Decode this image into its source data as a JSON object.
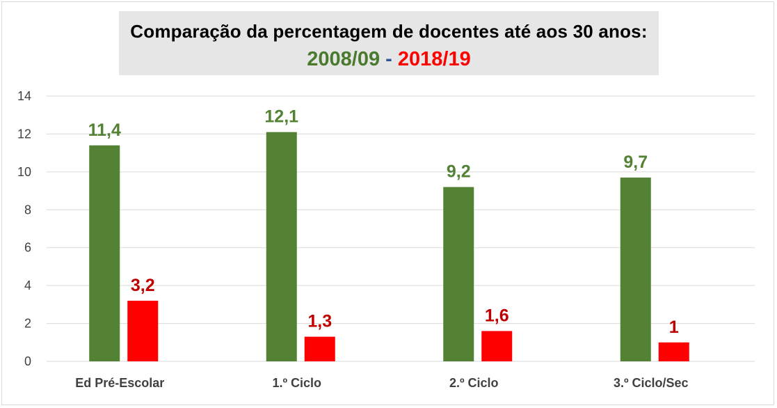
{
  "title_line1": "Comparação da percentagem de docentes até aos 30 anos:",
  "title_line2": {
    "series1": "2008/09",
    "separator": "-",
    "series2": "2018/19"
  },
  "chart_data": {
    "type": "bar",
    "title": "Comparação da percentagem de docentes até aos 30 anos: 2008/09 - 2018/19",
    "categories": [
      "Ed Pré-Escolar",
      "1.º Ciclo",
      "2.º Ciclo",
      "3.º Ciclo/Sec"
    ],
    "series": [
      {
        "name": "2008/09",
        "values": [
          11.4,
          12.1,
          9.2,
          9.7
        ],
        "labels": [
          "11,4",
          "12,1",
          "9,2",
          "9,7"
        ],
        "color": "#548235",
        "label_color": "#548235"
      },
      {
        "name": "2018/19",
        "values": [
          3.2,
          1.3,
          1.6,
          1
        ],
        "labels": [
          "3,2",
          "1,3",
          "1,6",
          "1"
        ],
        "color": "#ff0000",
        "label_color": "#c00000"
      }
    ],
    "yticks": [
      0,
      2,
      4,
      6,
      8,
      10,
      12,
      14
    ],
    "ylim": [
      0,
      14
    ],
    "grid": true,
    "legend": "none"
  }
}
